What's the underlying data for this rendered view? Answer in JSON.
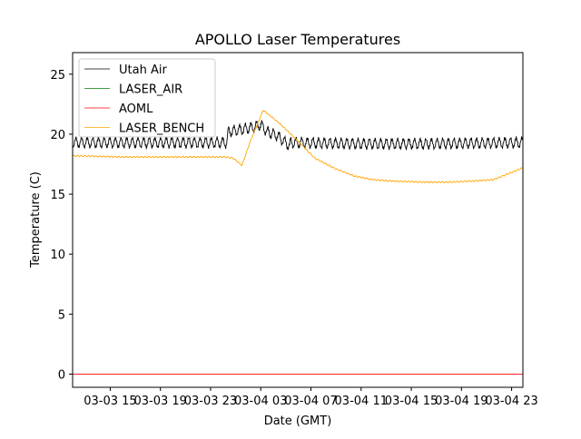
{
  "chart_data": {
    "type": "line",
    "title": "APOLLO Laser Temperatures",
    "xlabel": "Date (GMT)",
    "ylabel": "Temperature (C)",
    "x_units": "hours since 03-03 00:00 GMT",
    "xlim": [
      12,
      47.9
    ],
    "ylim": [
      -1.1,
      26.8
    ],
    "xticks": [
      {
        "value": 15,
        "label": "03-03 15"
      },
      {
        "value": 19,
        "label": "03-03 19"
      },
      {
        "value": 23,
        "label": "03-03 23"
      },
      {
        "value": 27,
        "label": "03-04 03"
      },
      {
        "value": 31,
        "label": "03-04 07"
      },
      {
        "value": 35,
        "label": "03-04 11"
      },
      {
        "value": 39,
        "label": "03-04 15"
      },
      {
        "value": 43,
        "label": "03-04 19"
      },
      {
        "value": 47,
        "label": "03-04 23"
      }
    ],
    "yticks": [
      0,
      5,
      10,
      15,
      20,
      25
    ],
    "grid": false,
    "legend_position": "top-left",
    "series": [
      {
        "name": "Utah Air",
        "color": "#000000",
        "oscillation_amplitude": 0.4,
        "oscillation_period_hours": 0.45,
        "x": [
          12,
          24.3,
          24.4,
          25.5,
          26.5,
          27.0,
          27.5,
          28.3,
          29.3,
          29.4,
          35,
          40,
          47.9
        ],
        "y": [
          19.3,
          19.3,
          20.2,
          20.4,
          20.6,
          20.8,
          20.2,
          19.9,
          19.0,
          19.3,
          19.2,
          19.2,
          19.3
        ]
      },
      {
        "name": "LASER_AIR",
        "color": "#008000",
        "x": [],
        "y": []
      },
      {
        "name": "AOML",
        "color": "#ff0000",
        "x": [
          12,
          47.9
        ],
        "y": [
          0,
          0
        ]
      },
      {
        "name": "LASER_BENCH",
        "color": "#ffa500",
        "oscillation_amplitude": 0.05,
        "oscillation_period_hours": 0.3,
        "x": [
          12,
          16,
          20,
          24.2,
          24.8,
          25.5,
          26.2,
          27.2,
          28.5,
          30,
          31.3,
          33,
          34.5,
          36,
          37.4,
          40,
          42,
          44,
          45.5,
          46.5,
          47.9
        ],
        "y": [
          18.2,
          18.1,
          18.1,
          18.1,
          18.0,
          17.4,
          19.5,
          22.0,
          20.9,
          19.4,
          18.0,
          17.1,
          16.5,
          16.2,
          16.1,
          16.0,
          16.0,
          16.1,
          16.2,
          16.6,
          17.2
        ]
      }
    ]
  }
}
